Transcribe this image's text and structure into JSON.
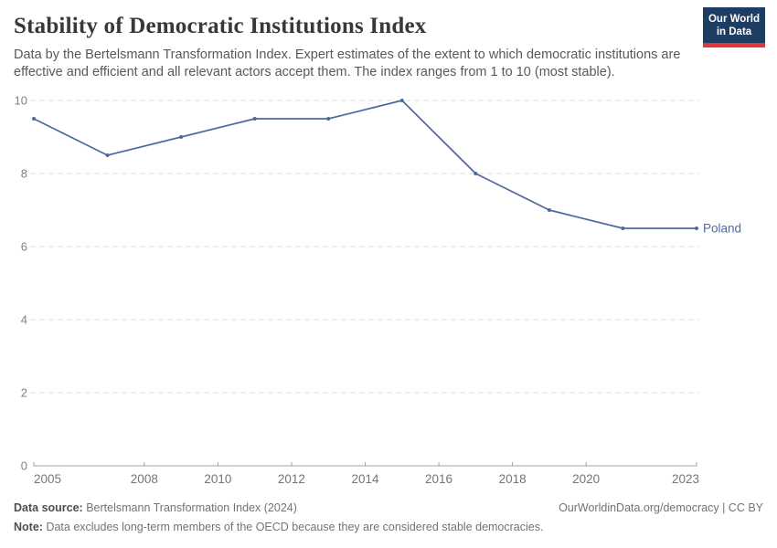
{
  "header": {
    "title": "Stability of Democratic Institutions Index",
    "subtitle": "Data by the Bertelsmann Transformation Index. Expert estimates of the extent to which democratic institutions are effective and efficient and all relevant actors accept them. The index ranges from 1 to 10 (most stable).",
    "logo": {
      "line1": "Our World",
      "line2": "in Data",
      "bg_color": "#1d3d63",
      "accent_color": "#e0373f"
    }
  },
  "chart_data": {
    "type": "line",
    "title": "Stability of Democratic Institutions Index",
    "x": [
      2005,
      2007,
      2009,
      2011,
      2013,
      2015,
      2017,
      2019,
      2021,
      2023
    ],
    "series": [
      {
        "name": "Poland",
        "values": [
          9.5,
          8.5,
          9,
          9.5,
          9.5,
          10,
          8,
          7,
          6.5,
          6.5
        ],
        "color": "#4c6a9c"
      }
    ],
    "xlim": [
      2005,
      2023
    ],
    "ylim": [
      0,
      10
    ],
    "yticks": [
      0,
      2,
      4,
      6,
      8,
      10
    ],
    "xticks": [
      2005,
      2008,
      2010,
      2012,
      2014,
      2016,
      2018,
      2020,
      2023
    ],
    "xlabel": "",
    "ylabel": "",
    "grid": "horizontal-dashed",
    "grid_color": "#dcdcdc",
    "axis_color": "#a3a3a3",
    "tick_label_color": "#808080",
    "legend_position": "end-of-line-label"
  },
  "footer": {
    "source_label": "Data source:",
    "source_text": "Bertelsmann Transformation Index (2024)",
    "credit": "OurWorldinData.org/democracy | CC BY",
    "note_label": "Note:",
    "note_text": "Data excludes long-term members of the OECD because they are considered stable democracies."
  }
}
